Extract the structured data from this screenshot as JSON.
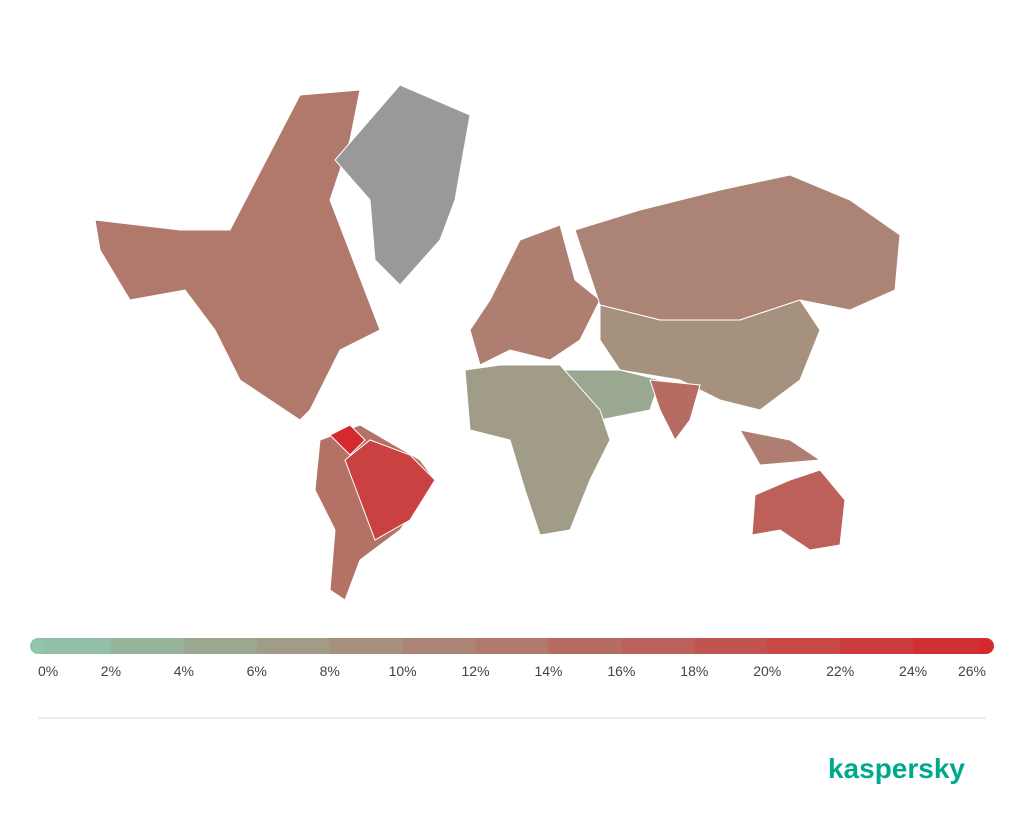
{
  "legend": {
    "range": [
      0,
      26
    ],
    "ticks": [
      {
        "value": 0,
        "label": "0%"
      },
      {
        "value": 2,
        "label": "2%"
      },
      {
        "value": 4,
        "label": "4%"
      },
      {
        "value": 6,
        "label": "6%"
      },
      {
        "value": 8,
        "label": "8%"
      },
      {
        "value": 10,
        "label": "10%"
      },
      {
        "value": 12,
        "label": "12%"
      },
      {
        "value": 14,
        "label": "14%"
      },
      {
        "value": 16,
        "label": "16%"
      },
      {
        "value": 18,
        "label": "18%"
      },
      {
        "value": 20,
        "label": "20%"
      },
      {
        "value": 22,
        "label": "22%"
      },
      {
        "value": 24,
        "label": "24%"
      },
      {
        "value": 26,
        "label": "26%"
      }
    ],
    "color_stops": [
      "#8ec6a9",
      "#d42a2e"
    ],
    "no_data_color": "#999999"
  },
  "regions": [
    {
      "value": 13
    },
    {
      "value": null
    },
    {
      "value": 14
    },
    {
      "value": 22
    },
    {
      "value": 26
    },
    {
      "value": 12
    },
    {
      "value": 11
    },
    {
      "value": 9
    },
    {
      "value": 5
    },
    {
      "value": 15
    },
    {
      "value": 7
    },
    {
      "value": 17
    },
    {
      "value": 12
    }
  ],
  "brand": "kaspersky"
}
